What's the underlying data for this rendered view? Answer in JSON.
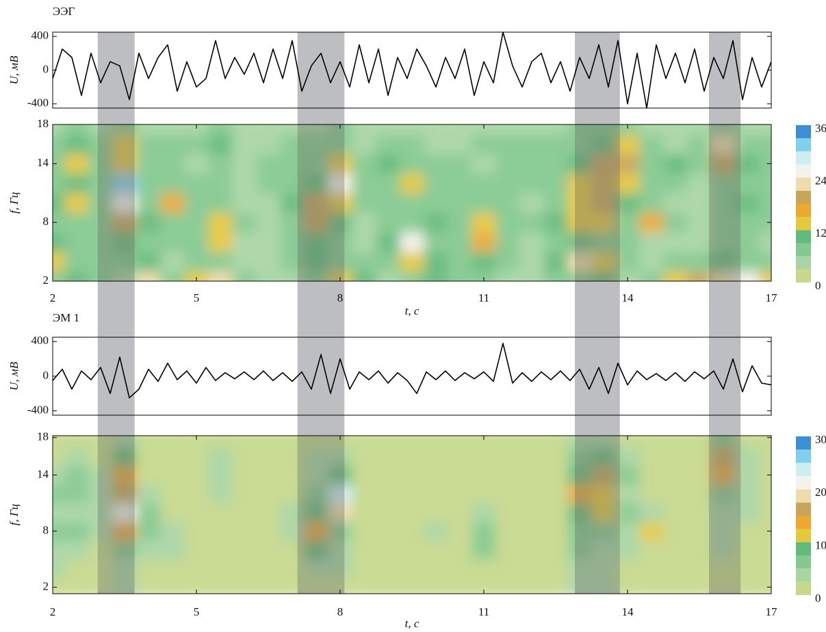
{
  "highlight_spans": [
    [
      2.94,
      3.71
    ],
    [
      7.11,
      8.09
    ],
    [
      12.9,
      13.84
    ],
    [
      15.7,
      16.36
    ]
  ],
  "highlight_color": "#bcbec2",
  "chart_data": [
    {
      "type": "line",
      "title": "ЭЭГ",
      "ylabel": "U, мВ",
      "color": "#000000",
      "xlim": [
        2,
        17
      ],
      "ylim": [
        -450,
        450
      ],
      "yticks": [
        -400,
        0,
        400
      ],
      "x": [
        2,
        2.2,
        2.4,
        2.6,
        2.8,
        3,
        3.2,
        3.4,
        3.6,
        3.8,
        4,
        4.2,
        4.4,
        4.6,
        4.8,
        5,
        5.2,
        5.4,
        5.6,
        5.8,
        6,
        6.2,
        6.4,
        6.6,
        6.8,
        7,
        7.2,
        7.4,
        7.6,
        7.8,
        8,
        8.2,
        8.4,
        8.6,
        8.8,
        9,
        9.2,
        9.4,
        9.6,
        9.8,
        10,
        10.2,
        10.4,
        10.6,
        10.8,
        11,
        11.2,
        11.4,
        11.6,
        11.8,
        12,
        12.2,
        12.4,
        12.6,
        12.8,
        13,
        13.2,
        13.4,
        13.6,
        13.8,
        14,
        14.2,
        14.4,
        14.6,
        14.8,
        15,
        15.2,
        15.4,
        15.6,
        15.8,
        16,
        16.2,
        16.4,
        16.6,
        16.8,
        17
      ],
      "values": [
        -100,
        250,
        150,
        -300,
        200,
        -150,
        100,
        50,
        -350,
        200,
        -100,
        150,
        300,
        -250,
        100,
        -200,
        -100,
        350,
        -100,
        150,
        -50,
        200,
        -150,
        250,
        -100,
        350,
        -250,
        50,
        200,
        -150,
        100,
        -200,
        300,
        -150,
        250,
        -300,
        150,
        -100,
        250,
        50,
        -200,
        150,
        -100,
        250,
        -300,
        100,
        -150,
        450,
        50,
        -200,
        100,
        200,
        -150,
        100,
        -250,
        150,
        -100,
        300,
        -200,
        350,
        -400,
        200,
        -450,
        300,
        -100,
        200,
        -150,
        250,
        -250,
        150,
        -100,
        350,
        -350,
        150,
        -200,
        100
      ]
    },
    {
      "type": "contour",
      "xlabel": "t, с",
      "ylabel": "f, Гц",
      "xlim": [
        2,
        17
      ],
      "ylim": [
        2,
        18
      ],
      "xticks": [
        2,
        5,
        8,
        11,
        14,
        17
      ],
      "yticks": [
        2,
        8,
        14,
        18
      ],
      "x": [
        2,
        2.5,
        3,
        3.5,
        4,
        4.5,
        5,
        5.5,
        6,
        6.5,
        7,
        7.5,
        8,
        8.5,
        9,
        9.5,
        10,
        10.5,
        11,
        11.5,
        12,
        12.5,
        13,
        13.5,
        14,
        14.5,
        15,
        15.5,
        16,
        16.5,
        17
      ],
      "y": [
        2,
        4,
        6,
        8,
        10,
        12,
        14,
        16,
        18
      ],
      "z": [
        [
          8,
          10,
          6,
          4,
          22,
          8,
          14,
          22,
          6,
          3,
          4,
          6,
          14,
          10,
          4,
          6,
          10,
          6,
          8,
          4,
          3,
          6,
          8,
          10,
          4,
          6,
          14,
          18,
          22,
          26,
          14
        ],
        [
          14,
          8,
          6,
          6,
          10,
          4,
          6,
          8,
          4,
          3,
          6,
          10,
          8,
          6,
          8,
          14,
          10,
          6,
          10,
          6,
          4,
          10,
          22,
          14,
          6,
          4,
          6,
          6,
          10,
          8,
          6
        ],
        [
          10,
          6,
          6,
          10,
          6,
          6,
          8,
          12,
          4,
          3,
          6,
          10,
          6,
          4,
          10,
          26,
          8,
          6,
          16,
          8,
          4,
          8,
          10,
          6,
          6,
          4,
          4,
          4,
          6,
          6,
          4
        ],
        [
          8,
          6,
          8,
          20,
          10,
          8,
          6,
          14,
          6,
          3,
          8,
          18,
          10,
          4,
          6,
          8,
          10,
          6,
          14,
          8,
          6,
          10,
          12,
          14,
          6,
          16,
          6,
          4,
          6,
          8,
          6
        ],
        [
          10,
          12,
          8,
          26,
          8,
          16,
          6,
          8,
          4,
          3,
          10,
          20,
          14,
          6,
          6,
          6,
          8,
          8,
          8,
          6,
          4,
          6,
          14,
          18,
          10,
          6,
          4,
          4,
          8,
          10,
          6
        ],
        [
          8,
          10,
          8,
          30,
          6,
          8,
          6,
          6,
          4,
          6,
          8,
          10,
          24,
          6,
          6,
          14,
          8,
          6,
          6,
          6,
          6,
          6,
          12,
          20,
          14,
          6,
          6,
          4,
          8,
          8,
          6
        ],
        [
          6,
          12,
          8,
          14,
          6,
          8,
          4,
          6,
          4,
          6,
          6,
          8,
          14,
          6,
          10,
          6,
          6,
          6,
          4,
          6,
          6,
          8,
          10,
          18,
          20,
          6,
          10,
          6,
          18,
          10,
          6
        ],
        [
          8,
          10,
          6,
          12,
          6,
          6,
          8,
          10,
          4,
          4,
          6,
          6,
          8,
          4,
          8,
          6,
          4,
          4,
          6,
          6,
          6,
          6,
          8,
          10,
          14,
          6,
          4,
          6,
          22,
          8,
          6
        ],
        [
          4,
          6,
          4,
          8,
          4,
          4,
          4,
          8,
          3,
          3,
          4,
          4,
          6,
          3,
          4,
          3,
          3,
          3,
          3,
          3,
          3,
          3,
          6,
          6,
          8,
          3,
          3,
          3,
          8,
          4,
          3
        ]
      ],
      "levels": [
        0,
        3,
        6,
        9,
        12,
        15,
        18,
        21,
        24,
        27,
        30,
        33,
        36
      ],
      "colors": [
        "#c6d98b",
        "#a9d5a4",
        "#84c98f",
        "#62ba7c",
        "#e6c83c",
        "#eca830",
        "#c8a55a",
        "#efdcac",
        "#f3f3ec",
        "#cfeef2",
        "#7fd0ec",
        "#3b8fd6"
      ],
      "colorbar_ticks": [
        0,
        12,
        24,
        36
      ]
    },
    {
      "type": "line",
      "title": "ЭМ 1",
      "ylabel": "U, мВ",
      "color": "#000000",
      "xlim": [
        2,
        17
      ],
      "ylim": [
        -450,
        450
      ],
      "yticks": [
        -400,
        0,
        400
      ],
      "x": [
        2,
        2.2,
        2.4,
        2.6,
        2.8,
        3,
        3.2,
        3.4,
        3.6,
        3.8,
        4,
        4.2,
        4.4,
        4.6,
        4.8,
        5,
        5.2,
        5.4,
        5.6,
        5.8,
        6,
        6.2,
        6.4,
        6.6,
        6.8,
        7,
        7.2,
        7.4,
        7.6,
        7.8,
        8,
        8.2,
        8.4,
        8.6,
        8.8,
        9,
        9.2,
        9.4,
        9.6,
        9.8,
        10,
        10.2,
        10.4,
        10.6,
        10.8,
        11,
        11.2,
        11.4,
        11.6,
        11.8,
        12,
        12.2,
        12.4,
        12.6,
        12.8,
        13,
        13.2,
        13.4,
        13.6,
        13.8,
        14,
        14.2,
        14.4,
        14.6,
        14.8,
        15,
        15.2,
        15.4,
        15.6,
        15.8,
        16,
        16.2,
        16.4,
        16.6,
        16.8,
        17
      ],
      "values": [
        -50,
        80,
        -150,
        60,
        -40,
        100,
        -200,
        220,
        -250,
        -150,
        80,
        -60,
        150,
        -40,
        60,
        -80,
        100,
        -50,
        40,
        -30,
        50,
        -40,
        60,
        -50,
        40,
        -60,
        50,
        -150,
        250,
        -200,
        200,
        -150,
        50,
        -40,
        60,
        -80,
        40,
        -50,
        -200,
        50,
        -40,
        60,
        -50,
        40,
        -30,
        50,
        -60,
        380,
        -80,
        40,
        -60,
        50,
        -40,
        60,
        -50,
        80,
        -150,
        100,
        -200,
        150,
        -100,
        60,
        -40,
        30,
        -50,
        40,
        -60,
        50,
        -30,
        60,
        -150,
        200,
        -180,
        120,
        -80,
        -100
      ]
    },
    {
      "type": "contour",
      "xlabel": "t, с",
      "ylabel": "f, Гц",
      "xlim": [
        2,
        17
      ],
      "ylim": [
        1.3,
        18.2
      ],
      "xticks": [
        2,
        5,
        8,
        11,
        14,
        17
      ],
      "yticks": [
        2,
        8,
        14,
        18
      ],
      "x": [
        2,
        2.5,
        3,
        3.5,
        4,
        4.5,
        5,
        5.5,
        6,
        6.5,
        7,
        7.5,
        8,
        8.5,
        9,
        9.5,
        10,
        10.5,
        11,
        11.5,
        12,
        12.5,
        13,
        13.5,
        14,
        14.5,
        15,
        15.5,
        16,
        16.5,
        17
      ],
      "y": [
        2,
        4,
        6,
        8,
        10,
        12,
        14,
        16,
        18
      ],
      "z": [
        [
          2,
          2,
          2,
          3,
          2,
          2,
          2,
          2,
          1,
          1,
          1,
          2,
          2,
          1,
          1,
          1,
          1,
          1,
          1,
          1,
          1,
          1,
          3,
          3,
          2,
          1,
          1,
          1,
          2,
          2,
          1
        ],
        [
          3,
          2,
          2,
          4,
          2,
          2,
          2,
          2,
          1,
          1,
          2,
          4,
          3,
          1,
          1,
          1,
          1,
          1,
          2,
          1,
          1,
          1,
          4,
          4,
          2,
          1,
          1,
          1,
          2,
          2,
          1
        ],
        [
          4,
          3,
          2,
          6,
          4,
          3,
          2,
          2,
          1,
          1,
          2,
          8,
          4,
          1,
          2,
          1,
          2,
          1,
          5,
          1,
          1,
          1,
          5,
          4,
          3,
          2,
          1,
          1,
          3,
          2,
          1
        ],
        [
          6,
          6,
          3,
          14,
          6,
          3,
          1,
          1,
          1,
          1,
          3,
          14,
          6,
          1,
          2,
          1,
          4,
          1,
          5,
          1,
          1,
          2,
          6,
          6,
          4,
          12,
          1,
          1,
          3,
          2,
          1
        ],
        [
          4,
          4,
          3,
          22,
          6,
          2,
          1,
          2,
          1,
          1,
          3,
          8,
          18,
          1,
          2,
          1,
          2,
          1,
          3,
          1,
          1,
          2,
          8,
          10,
          6,
          3,
          1,
          1,
          4,
          3,
          1
        ],
        [
          5,
          5,
          3,
          16,
          3,
          1,
          1,
          3,
          1,
          1,
          2,
          6,
          24,
          1,
          1,
          1,
          1,
          1,
          2,
          1,
          1,
          1,
          14,
          12,
          4,
          1,
          2,
          1,
          6,
          4,
          1
        ],
        [
          4,
          6,
          3,
          14,
          2,
          1,
          1,
          4,
          1,
          1,
          2,
          4,
          8,
          1,
          1,
          1,
          1,
          1,
          1,
          1,
          1,
          1,
          8,
          16,
          6,
          1,
          1,
          1,
          14,
          4,
          1
        ],
        [
          2,
          3,
          2,
          8,
          2,
          1,
          1,
          4,
          1,
          1,
          1,
          3,
          4,
          1,
          1,
          1,
          1,
          1,
          1,
          1,
          1,
          1,
          6,
          8,
          4,
          1,
          1,
          1,
          16,
          4,
          1
        ],
        [
          1,
          2,
          1,
          4,
          1,
          1,
          1,
          2,
          1,
          1,
          1,
          2,
          2,
          1,
          1,
          1,
          1,
          1,
          1,
          1,
          1,
          1,
          3,
          4,
          2,
          1,
          1,
          1,
          6,
          2,
          1
        ]
      ],
      "levels": [
        0,
        2.5,
        5,
        7.5,
        10,
        12.5,
        15,
        17.5,
        20,
        22.5,
        25,
        27.5,
        30
      ],
      "colors": [
        "#c6d98b",
        "#a9d5a4",
        "#84c98f",
        "#62ba7c",
        "#e6c83c",
        "#eca830",
        "#c8a55a",
        "#efdcac",
        "#f3f3ec",
        "#cfeef2",
        "#7fd0ec",
        "#3b8fd6"
      ],
      "colorbar_ticks": [
        0,
        10,
        20,
        30
      ]
    }
  ]
}
